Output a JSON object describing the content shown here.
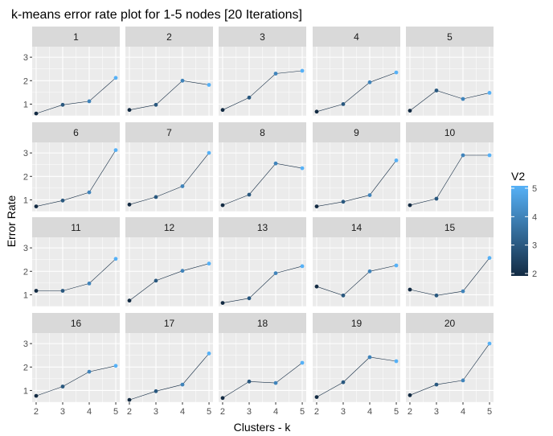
{
  "chart_data": {
    "type": "line",
    "title": "k-means error rate plot for 1-5 nodes [20 Iterations]",
    "xlabel": "Clusters - k",
    "ylabel": "Error Rate",
    "x": [
      2,
      3,
      4,
      5
    ],
    "x_ticks": [
      "2",
      "3",
      "4",
      "5"
    ],
    "y_ticks": [
      "1",
      "2",
      "3"
    ],
    "ylim": [
      0.5,
      3.45
    ],
    "grid": true,
    "legend": {
      "title": "V2",
      "type": "colorbar",
      "position": "right",
      "range": [
        2,
        5
      ],
      "labels": [
        "5",
        "4",
        "3",
        "2"
      ],
      "low_color": "#132B43",
      "high_color": "#56B1F7"
    },
    "colors": {
      "panel_background": "#ebebeb",
      "strip_background": "#d9d9d9",
      "grid_major": "#ffffff",
      "axis_text": "#4d4d4d",
      "line": "#132B43"
    },
    "panels": [
      {
        "label": "1",
        "values": [
          0.6,
          0.97,
          1.12,
          2.12
        ]
      },
      {
        "label": "2",
        "values": [
          0.75,
          0.97,
          2.0,
          1.82
        ]
      },
      {
        "label": "3",
        "values": [
          0.75,
          1.28,
          2.3,
          2.42
        ]
      },
      {
        "label": "4",
        "values": [
          0.68,
          1.0,
          1.93,
          2.35
        ]
      },
      {
        "label": "5",
        "values": [
          0.72,
          1.58,
          1.22,
          1.48
        ]
      },
      {
        "label": "6",
        "values": [
          0.72,
          0.97,
          1.32,
          3.12
        ]
      },
      {
        "label": "7",
        "values": [
          0.8,
          1.12,
          1.58,
          3.0
        ]
      },
      {
        "label": "8",
        "values": [
          0.77,
          1.22,
          2.55,
          2.35
        ]
      },
      {
        "label": "9",
        "values": [
          0.72,
          0.92,
          1.2,
          2.68
        ]
      },
      {
        "label": "10",
        "values": [
          0.77,
          1.05,
          2.9,
          2.9
        ]
      },
      {
        "label": "11",
        "values": [
          1.17,
          1.17,
          1.48,
          2.53
        ]
      },
      {
        "label": "12",
        "values": [
          0.75,
          1.6,
          2.02,
          2.33
        ]
      },
      {
        "label": "13",
        "values": [
          0.65,
          0.85,
          1.92,
          2.22
        ]
      },
      {
        "label": "14",
        "values": [
          1.35,
          0.97,
          2.0,
          2.25
        ]
      },
      {
        "label": "15",
        "values": [
          1.22,
          0.97,
          1.15,
          2.57
        ]
      },
      {
        "label": "16",
        "values": [
          0.77,
          1.17,
          1.8,
          2.05
        ]
      },
      {
        "label": "17",
        "values": [
          0.6,
          0.97,
          1.25,
          2.58
        ]
      },
      {
        "label": "18",
        "values": [
          0.68,
          1.38,
          1.32,
          2.18
        ]
      },
      {
        "label": "19",
        "values": [
          0.72,
          1.35,
          2.42,
          2.25
        ]
      },
      {
        "label": "20",
        "values": [
          0.8,
          1.25,
          1.43,
          3.0
        ]
      }
    ]
  }
}
